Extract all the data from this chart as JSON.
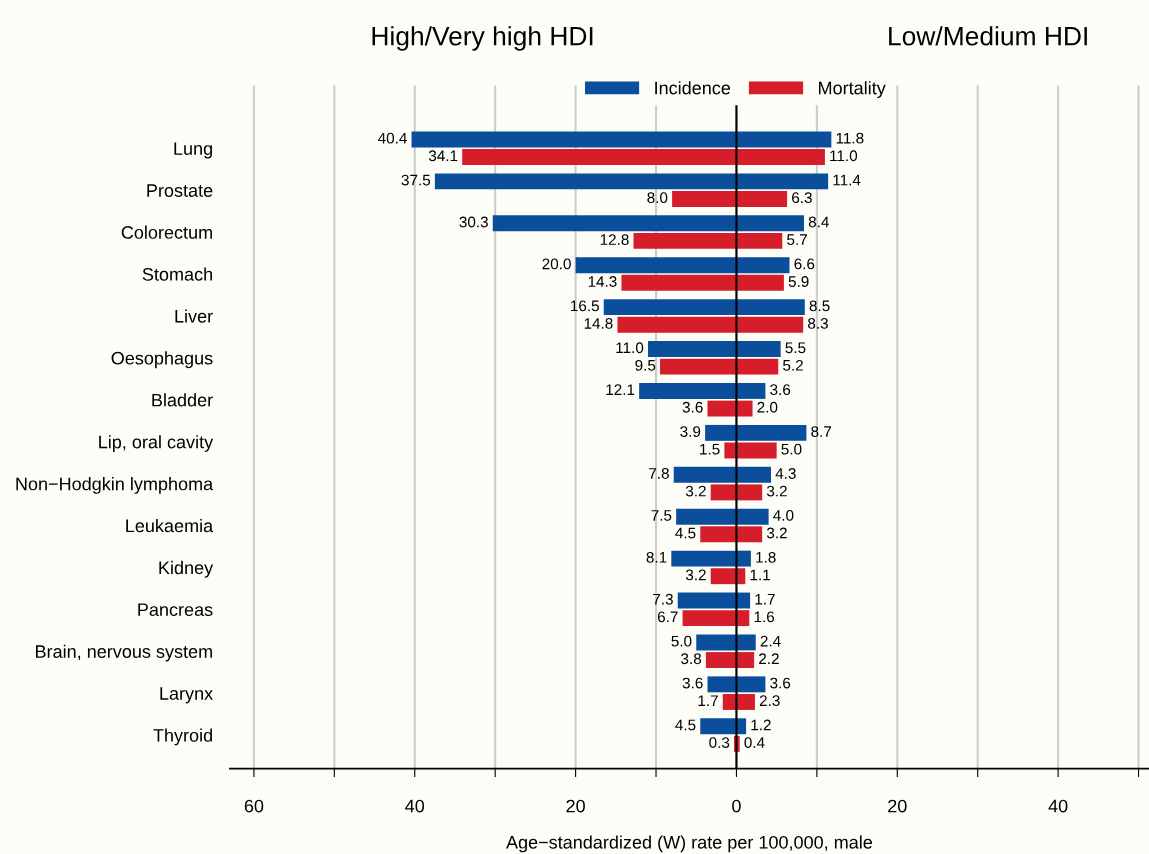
{
  "chart_data": {
    "type": "bar",
    "orientation": "horizontal",
    "xlabel": "Age−standardized (W) rate per 100,000, male",
    "annotations": [
      "High/Very high HDI",
      "Low/Medium HDI"
    ],
    "categories": [
      "Lung",
      "Prostate",
      "Colorectum",
      "Stomach",
      "Liver",
      "Oesophagus",
      "Bladder",
      "Lip, oral cavity",
      "Non−Hodgkin lymphoma",
      "Leukaemia",
      "Kidney",
      "Pancreas",
      "Brain, nervous system",
      "Larynx",
      "Thyroid"
    ],
    "series": [
      {
        "name": "Incidence",
        "color": "#0b4f9c",
        "values": [
          40.4,
          37.5,
          30.3,
          20.0,
          16.5,
          11.0,
          12.1,
          3.9,
          7.8,
          7.5,
          8.1,
          7.3,
          5.0,
          3.6,
          4.5
        ],
        "base": [
          -40.4,
          -37.5,
          -30.3,
          -20.0,
          -16.5,
          -11.0,
          -12.1,
          -3.9,
          -7.8,
          -7.5,
          -8.1,
          -7.3,
          -5.0,
          -3.6,
          -4.5
        ],
        "value_labels": [
          "40.4",
          "37.5",
          "30.3",
          "20.0",
          "16.5",
          "11.0",
          "12.1",
          "3.9",
          "7.8",
          "7.5",
          "8.1",
          "7.3",
          "5.0",
          "3.6",
          "4.5"
        ]
      },
      {
        "name": "Mortality",
        "color": "#d51e29",
        "values": [
          34.1,
          8.0,
          12.8,
          14.3,
          14.8,
          9.5,
          3.6,
          1.5,
          3.2,
          4.5,
          3.2,
          6.7,
          3.8,
          1.7,
          0.3
        ],
        "base": [
          -34.1,
          -8.0,
          -12.8,
          -14.3,
          -14.8,
          -9.5,
          -3.6,
          -1.5,
          -3.2,
          -4.5,
          -3.2,
          -6.7,
          -3.8,
          -1.7,
          -0.3
        ],
        "value_labels": [
          "34.1",
          "8.0",
          "12.8",
          "14.3",
          "14.8",
          "9.5",
          "3.6",
          "1.5",
          "3.2",
          "4.5",
          "3.2",
          "6.7",
          "3.8",
          "1.7",
          "0.3"
        ]
      },
      {
        "color": "#0b4f9c",
        "values": [
          11.8,
          11.4,
          8.4,
          6.6,
          8.5,
          5.5,
          3.6,
          8.7,
          4.3,
          4.0,
          1.8,
          1.7,
          2.4,
          3.6,
          1.2
        ],
        "value_labels": [
          "11.8",
          "11.4",
          "8.4",
          "6.6",
          "8.5",
          "5.5",
          "3.6",
          "8.7",
          "4.3",
          "4.0",
          "1.8",
          "1.7",
          "2.4",
          "3.6",
          "1.2"
        ]
      },
      {
        "color": "#d51e29",
        "values": [
          11.0,
          6.3,
          5.7,
          5.9,
          8.3,
          5.2,
          2.0,
          5.0,
          3.2,
          3.2,
          1.1,
          1.6,
          2.2,
          2.3,
          0.4
        ],
        "value_labels": [
          "11.0",
          "6.3",
          "5.7",
          "5.9",
          "8.3",
          "5.2",
          "2.0",
          "5.0",
          "3.2",
          "3.2",
          "1.1",
          "1.6",
          "2.2",
          "2.3",
          "0.4"
        ]
      }
    ],
    "xlim": [
      -63,
      51.3
    ],
    "xticks": [
      {
        "value": -60,
        "label": "60"
      },
      {
        "value": -50,
        "label": null
      },
      {
        "value": -40,
        "label": "40"
      },
      {
        "value": -30,
        "label": null
      },
      {
        "value": -20,
        "label": "20"
      },
      {
        "value": -10,
        "label": null
      },
      0,
      {
        "value": 10,
        "label": null
      },
      {
        "value": 20,
        "label": "20"
      },
      {
        "value": 30,
        "label": null
      },
      {
        "value": 40,
        "label": "40"
      },
      {
        "value": 50,
        "label": null
      }
    ],
    "ref_lines": [
      {
        "axis": "x",
        "value": 0,
        "color": "#000000"
      }
    ],
    "grid": "x",
    "legend": "top"
  }
}
